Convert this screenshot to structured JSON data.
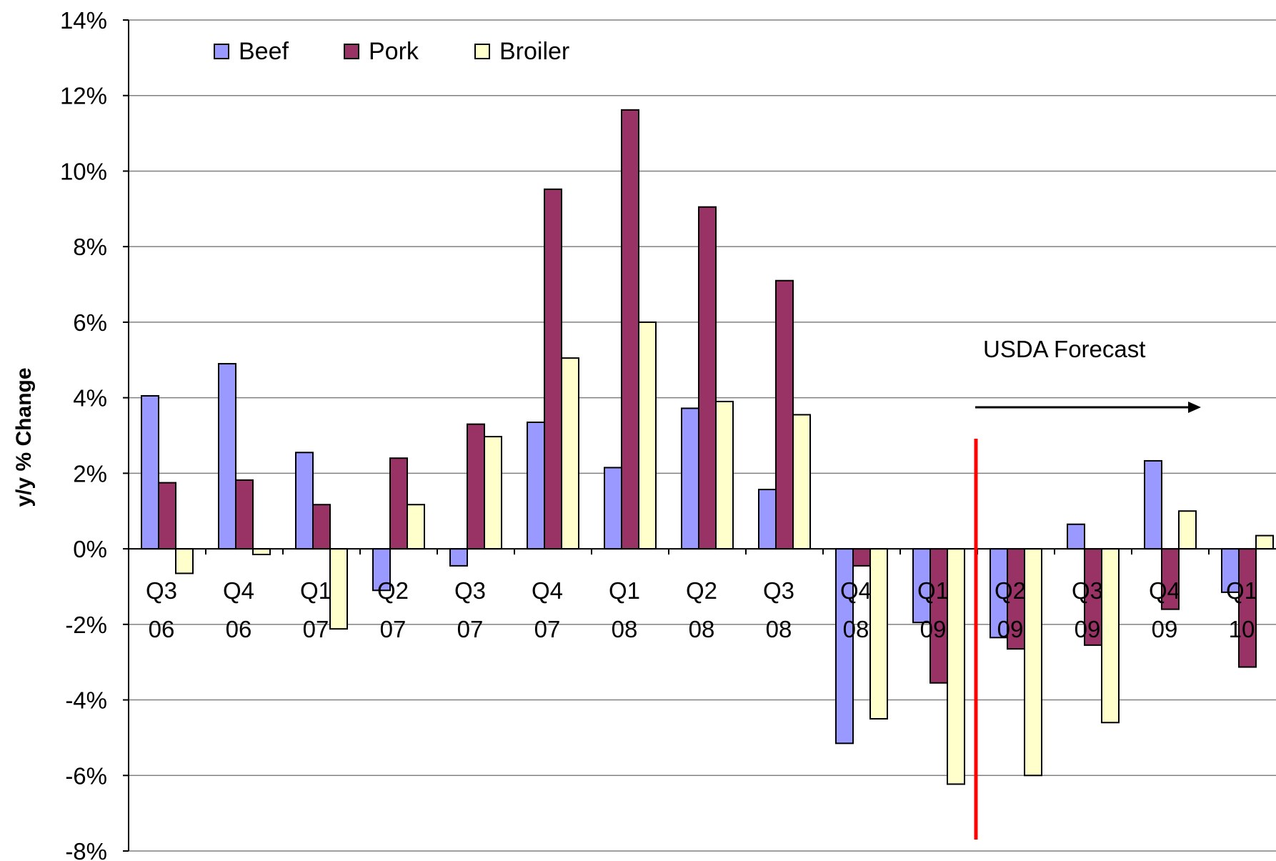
{
  "chart_data": {
    "type": "bar",
    "title": "",
    "xlabel": "",
    "ylabel": "y/y % Change",
    "ylim": [
      -8,
      14
    ],
    "ytick_step": 2,
    "ytick_labels": [
      "14%",
      "12%",
      "10%",
      "8%",
      "6%",
      "4%",
      "2%",
      "0%",
      "-2%",
      "-4%",
      "-6%",
      "-8%"
    ],
    "grid": true,
    "legend_position": "top-left",
    "categories": [
      [
        "Q3",
        "06"
      ],
      [
        "Q4",
        "06"
      ],
      [
        "Q1",
        "07"
      ],
      [
        "Q2",
        "07"
      ],
      [
        "Q3",
        "07"
      ],
      [
        "Q4",
        "07"
      ],
      [
        "Q1",
        "08"
      ],
      [
        "Q2",
        "08"
      ],
      [
        "Q3",
        "08"
      ],
      [
        "Q4",
        "08"
      ],
      [
        "Q1",
        "09"
      ],
      [
        "Q2",
        "09"
      ],
      [
        "Q3",
        "09"
      ],
      [
        "Q4",
        "09"
      ],
      [
        "Q1",
        "10"
      ]
    ],
    "series": [
      {
        "name": "Beef",
        "color": "#9999ff",
        "values": [
          4.05,
          4.9,
          2.55,
          -1.1,
          -0.45,
          3.35,
          2.15,
          3.72,
          1.57,
          -5.15,
          -1.95,
          -2.35,
          0.65,
          2.33,
          -1.15
        ]
      },
      {
        "name": "Pork",
        "color": "#993366",
        "values": [
          1.75,
          1.82,
          1.17,
          2.4,
          3.3,
          9.52,
          11.62,
          9.05,
          7.1,
          -0.45,
          -3.55,
          -2.65,
          -2.55,
          -1.6,
          -3.13
        ]
      },
      {
        "name": "Broiler",
        "color": "#ffffcc",
        "values": [
          -0.65,
          -0.15,
          -2.12,
          1.17,
          2.97,
          5.05,
          6.0,
          3.9,
          3.55,
          -4.5,
          -6.23,
          -6.0,
          -4.6,
          1.0,
          0.35
        ]
      }
    ],
    "annotation": {
      "text": "USDA Forecast",
      "forecast_starts_after_category": "Q1 09"
    }
  }
}
